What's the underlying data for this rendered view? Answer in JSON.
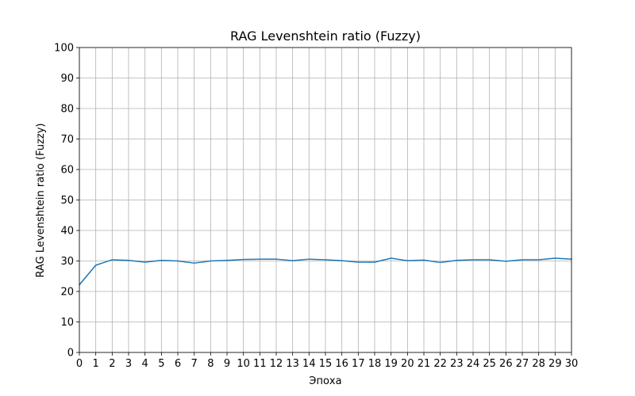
{
  "chart_data": {
    "type": "line",
    "title": "RAG Levenshtein ratio (Fuzzy)",
    "xlabel": "Эпоха",
    "ylabel": "RAG Levenshtein ratio (Fuzzy)",
    "xlim": [
      0,
      30
    ],
    "ylim": [
      0,
      100
    ],
    "x_ticks": [
      0,
      1,
      2,
      3,
      4,
      5,
      6,
      7,
      8,
      9,
      10,
      11,
      12,
      13,
      14,
      15,
      16,
      17,
      18,
      19,
      20,
      21,
      22,
      23,
      24,
      25,
      26,
      27,
      28,
      29,
      30
    ],
    "y_ticks": [
      0,
      10,
      20,
      30,
      40,
      50,
      60,
      70,
      80,
      90,
      100
    ],
    "grid": true,
    "series": [
      {
        "color": "#1f77b4",
        "x": [
          0,
          1,
          2,
          3,
          4,
          5,
          6,
          7,
          8,
          9,
          10,
          11,
          12,
          13,
          14,
          15,
          16,
          17,
          18,
          19,
          20,
          21,
          22,
          23,
          24,
          25,
          26,
          27,
          28,
          29,
          30
        ],
        "values": [
          22.2,
          28.6,
          30.4,
          30.2,
          29.6,
          30.2,
          30.0,
          29.3,
          30.0,
          30.2,
          30.5,
          30.6,
          30.6,
          30.1,
          30.6,
          30.4,
          30.1,
          29.6,
          29.6,
          30.9,
          30.1,
          30.3,
          29.5,
          30.2,
          30.4,
          30.4,
          29.9,
          30.4,
          30.4,
          30.9,
          30.6
        ]
      }
    ]
  }
}
